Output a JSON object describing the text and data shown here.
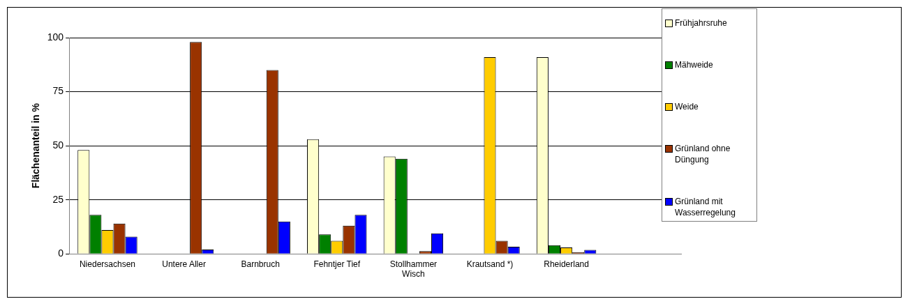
{
  "chart_data": {
    "type": "bar",
    "ylabel": "Flächenanteil in %",
    "categories": [
      "Niedersachsen",
      "Untere Aller",
      "Barnbruch",
      "Fehntjer Tief",
      "Stollhammer Wisch",
      "Krautsand *)",
      "Rheiderland",
      null
    ],
    "series": [
      {
        "name": "Frühjahrsruhe",
        "color": "#ffffcc",
        "values": [
          48,
          null,
          null,
          53,
          45,
          null,
          91,
          null
        ]
      },
      {
        "name": "Mähweide",
        "color": "#008000",
        "values": [
          18,
          null,
          null,
          9,
          44,
          null,
          4,
          null
        ]
      },
      {
        "name": "Weide",
        "color": "#ffcc00",
        "values": [
          11,
          null,
          null,
          6,
          null,
          91,
          3,
          null
        ]
      },
      {
        "name": "Grünland ohne Düngung",
        "color": "#993300",
        "values": [
          14,
          98,
          85,
          13,
          1.3,
          6,
          0.7,
          null
        ]
      },
      {
        "name": "Grünland mit Wasserregelung",
        "color": "#0000ff",
        "values": [
          8,
          2,
          15,
          18,
          9.5,
          3.3,
          1.8,
          null
        ]
      }
    ],
    "ylim": [
      0,
      100
    ],
    "yticks": [
      0,
      25,
      50,
      75,
      100
    ],
    "grid": "y",
    "legend": "top right"
  }
}
